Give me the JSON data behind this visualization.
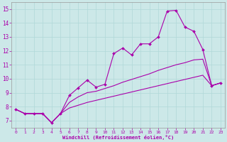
{
  "xlabel": "Windchill (Refroidissement éolien,°C)",
  "background_color": "#cce8e8",
  "line_color": "#aa00aa",
  "xlim": [
    -0.5,
    23.5
  ],
  "ylim": [
    6.5,
    15.5
  ],
  "yticks": [
    7,
    8,
    9,
    10,
    11,
    12,
    13,
    14,
    15
  ],
  "xticks": [
    0,
    1,
    2,
    3,
    4,
    5,
    6,
    7,
    8,
    9,
    10,
    11,
    12,
    13,
    14,
    15,
    16,
    17,
    18,
    19,
    20,
    21,
    22,
    23
  ],
  "series_main": {
    "x": [
      0,
      1,
      2,
      3,
      4,
      5,
      6,
      7,
      8,
      9,
      10,
      11,
      12,
      13,
      14,
      15,
      16,
      17,
      18,
      19,
      20,
      21,
      22,
      23
    ],
    "y": [
      7.8,
      7.5,
      7.5,
      7.5,
      6.85,
      7.5,
      8.8,
      9.35,
      9.9,
      9.4,
      9.6,
      11.8,
      12.2,
      11.7,
      12.5,
      12.5,
      13.0,
      14.85,
      14.9,
      13.7,
      13.4,
      12.1,
      9.5,
      9.7
    ]
  },
  "series_upper": {
    "x": [
      0,
      1,
      2,
      3,
      4,
      5,
      6,
      7,
      8,
      9,
      10,
      11,
      12,
      13,
      14,
      15,
      16,
      17,
      18,
      19,
      20,
      21,
      22,
      23
    ],
    "y": [
      7.8,
      7.5,
      7.5,
      7.5,
      6.85,
      7.5,
      8.3,
      8.7,
      9.0,
      9.1,
      9.3,
      9.5,
      9.75,
      9.95,
      10.15,
      10.35,
      10.6,
      10.8,
      11.0,
      11.15,
      11.35,
      11.4,
      9.5,
      9.7
    ]
  },
  "series_lower": {
    "x": [
      0,
      1,
      2,
      3,
      4,
      5,
      6,
      7,
      8,
      9,
      10,
      11,
      12,
      13,
      14,
      15,
      16,
      17,
      18,
      19,
      20,
      21,
      22,
      23
    ],
    "y": [
      7.8,
      7.5,
      7.5,
      7.5,
      6.85,
      7.5,
      7.9,
      8.1,
      8.3,
      8.45,
      8.6,
      8.75,
      8.9,
      9.05,
      9.2,
      9.35,
      9.5,
      9.65,
      9.8,
      9.95,
      10.1,
      10.25,
      9.5,
      9.7
    ]
  }
}
